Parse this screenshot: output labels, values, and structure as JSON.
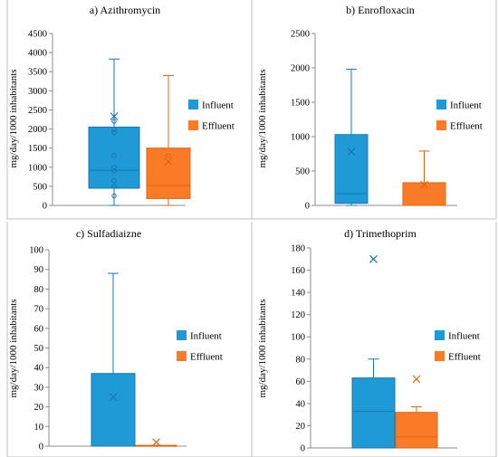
{
  "colors": {
    "influent": "#1f9ad6",
    "influent_line": "#1578b0",
    "effluent": "#fa7b27",
    "effluent_line": "#e0640f",
    "frame": "#bfbfbf"
  },
  "chart_data": [
    {
      "type": "box",
      "title": "a)   Azithromycin",
      "ylabel": "mg/day/1000 inhabitants",
      "ylim": [
        0,
        4500
      ],
      "yticks": [
        0,
        500,
        1000,
        1500,
        2000,
        2500,
        3000,
        3500,
        4000,
        4500
      ],
      "legend": "right",
      "series": [
        {
          "name": "Influent",
          "min": 0,
          "q1": 450,
          "median": 920,
          "q3": 2050,
          "max": 3830,
          "mean": 2330,
          "points": [
            250,
            500,
            650,
            900,
            1000,
            1300,
            1900,
            2000,
            2200
          ]
        },
        {
          "name": "Effluent",
          "min": 0,
          "q1": 180,
          "median": 520,
          "q3": 1500,
          "max": 3400,
          "mean": 1150,
          "points": [
            1300
          ]
        }
      ]
    },
    {
      "type": "box",
      "title": "b)   Enrofloxacin",
      "ylabel": "mg/day/1000 inhabitants",
      "ylim": [
        0,
        2500
      ],
      "yticks": [
        0,
        500,
        1000,
        1500,
        2000,
        2500
      ],
      "legend": "right",
      "series": [
        {
          "name": "Influent",
          "min": 0,
          "q1": 30,
          "median": 170,
          "q3": 1030,
          "max": 1980,
          "mean": 780,
          "points": []
        },
        {
          "name": "Effluent",
          "min": 0,
          "q1": 0,
          "median": 0,
          "q3": 330,
          "max": 790,
          "mean": 300,
          "points": []
        }
      ]
    },
    {
      "type": "box",
      "title": "c)   Sulfadiaizne",
      "ylabel": "mg/day/1000 inhabitants",
      "ylim": [
        0,
        100
      ],
      "yticks": [
        0,
        10,
        20,
        30,
        40,
        50,
        60,
        70,
        80,
        90,
        100
      ],
      "legend": "right",
      "series": [
        {
          "name": "Influent",
          "min": 0,
          "q1": 0,
          "median": 0,
          "q3": 37,
          "max": 88,
          "mean": 25,
          "points": []
        },
        {
          "name": "Effluent",
          "min": 0,
          "q1": 0,
          "median": 0,
          "q3": 0.4,
          "max": 0.4,
          "mean": 2,
          "points": []
        }
      ]
    },
    {
      "type": "box",
      "title": "d)   Trimethoprim",
      "ylabel": "mg/day/1000 inhabitants",
      "ylim": [
        0,
        180
      ],
      "yticks": [
        0,
        20,
        40,
        60,
        80,
        100,
        120,
        140,
        160,
        180
      ],
      "legend": "right",
      "series": [
        {
          "name": "Influent",
          "min": 0,
          "q1": 0,
          "median": 33,
          "q3": 63,
          "max": 80,
          "mean": 170,
          "points": []
        },
        {
          "name": "Effluent",
          "min": 0,
          "q1": 0,
          "median": 10,
          "q3": 32,
          "max": 37,
          "mean": 62,
          "points": []
        }
      ]
    }
  ]
}
